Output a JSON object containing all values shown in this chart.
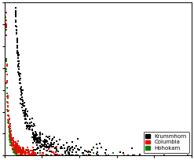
{
  "title": "",
  "legend_entries": [
    "Krummhorn",
    "Columbia",
    "Hohokam"
  ],
  "legend_colors": [
    "black",
    "red",
    "green"
  ],
  "background_color": "#ffffff",
  "xlim": [
    0,
    500
  ],
  "ylim": [
    0,
    700
  ],
  "seed": 42,
  "krummhorn": {
    "n": 500,
    "color": "black",
    "x_min": 2,
    "x_max": 490,
    "a": 1200,
    "b": 2.0,
    "noise_y": 25,
    "marker": "s",
    "size": 2.5
  },
  "columbia": {
    "n": 200,
    "color": "red",
    "x_min": 2,
    "x_max": 320,
    "a": 700,
    "b": 1.5,
    "noise_y": 20,
    "marker": "s",
    "size": 2.5
  },
  "hohokam": {
    "n": 170,
    "color": "green",
    "x_min": 2,
    "x_max": 290,
    "a": 600,
    "b": 1.5,
    "noise_y": 18,
    "marker": "s",
    "size": 2.5
  },
  "legend_fontsize": 5,
  "tick_labelsize": 5
}
